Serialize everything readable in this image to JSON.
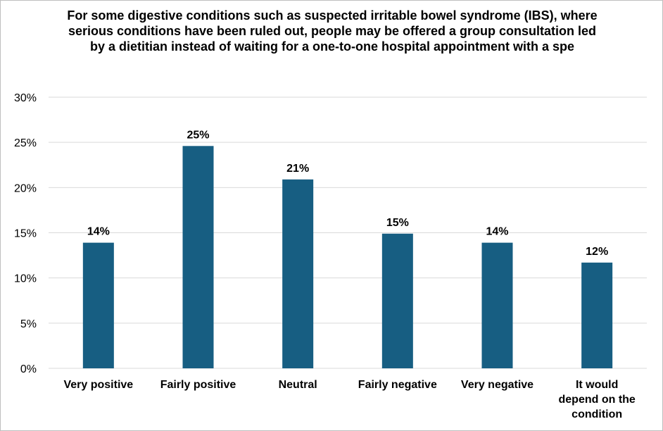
{
  "chart_data": {
    "type": "bar",
    "title": "For some digestive conditions such as suspected irritable bowel syndrome (IBS), where serious conditions have been ruled out, people may be offered a group consultation led by a dietitian instead of waiting for a one-to-one hospital appointment with a spe",
    "categories": [
      [
        "Very positive"
      ],
      [
        "Fairly positive"
      ],
      [
        "Neutral"
      ],
      [
        "Fairly negative"
      ],
      [
        "Very negative"
      ],
      [
        "It would",
        "depend on the",
        "condition"
      ]
    ],
    "values": [
      14,
      25,
      21,
      15,
      14,
      12
    ],
    "value_heights": [
      13.9,
      24.6,
      20.9,
      14.9,
      13.9,
      11.7
    ],
    "data_labels": [
      "14%",
      "25%",
      "21%",
      "15%",
      "14%",
      "12%"
    ],
    "ylim": [
      0,
      30
    ],
    "yticks": [
      "0%",
      "5%",
      "10%",
      "15%",
      "20%",
      "25%",
      "30%"
    ],
    "xlabel": "",
    "ylabel": "",
    "grid": true,
    "bar_color": "#175e82",
    "grid_color": "#d9d9d9"
  }
}
